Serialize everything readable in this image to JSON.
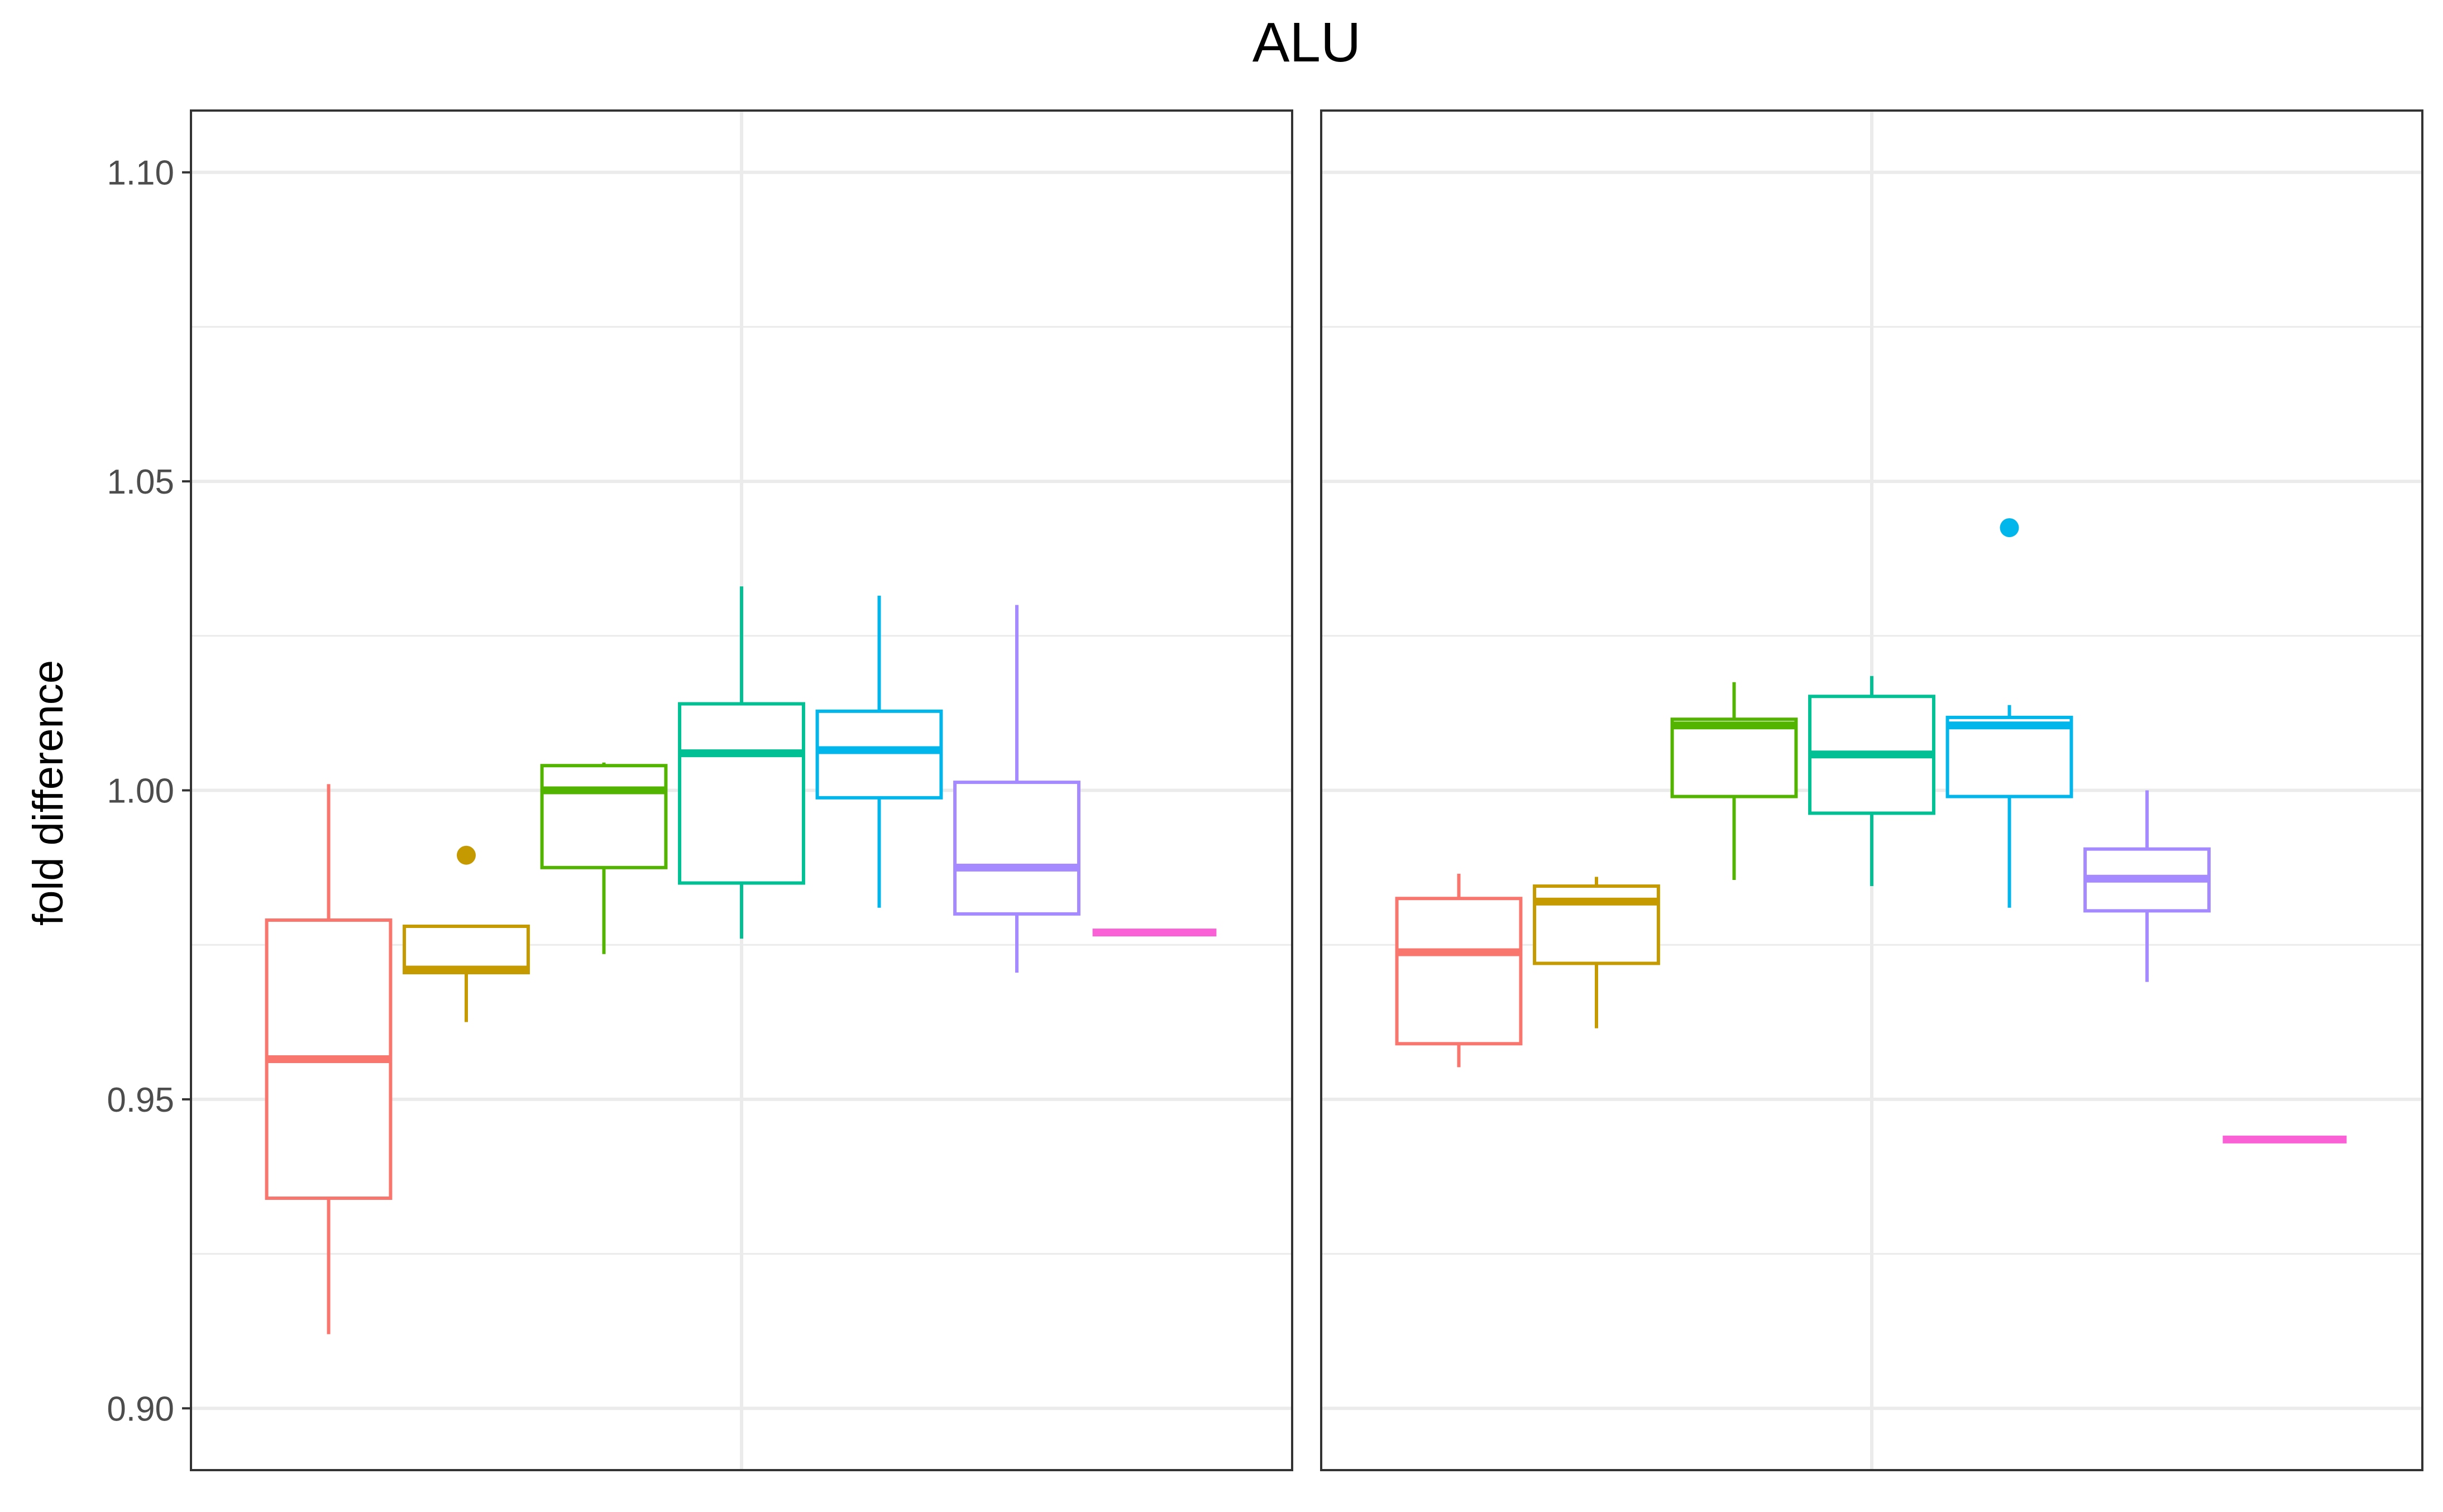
{
  "chart_data": {
    "type": "box",
    "title": "ALU",
    "ylabel": "fold difference",
    "xlabel": "",
    "ylim": [
      0.89,
      1.11
    ],
    "yticks": [
      0.9,
      0.95,
      1.0,
      1.05,
      1.1
    ],
    "ytick_labels": [
      "0.90",
      "0.95",
      "1.00",
      "1.05",
      "1.10"
    ],
    "grid": true,
    "legend": "none",
    "series_colors": [
      "#F8766D",
      "#C49A00",
      "#53B400",
      "#00C094",
      "#00B6EB",
      "#A58AFF",
      "#FB61D7"
    ],
    "panels": [
      {
        "boxes": [
          {
            "q1": 0.934,
            "median": 0.9565,
            "q3": 0.979,
            "whisker_low": 0.912,
            "whisker_high": 1.001,
            "outliers": []
          },
          {
            "q1": 0.9705,
            "median": 0.971,
            "q3": 0.978,
            "whisker_low": 0.9625,
            "whisker_high": 0.978,
            "outliers": [
              0.9895
            ]
          },
          {
            "q1": 0.9875,
            "median": 1.0,
            "q3": 1.004,
            "whisker_low": 0.9735,
            "whisker_high": 1.0045,
            "outliers": []
          },
          {
            "q1": 0.985,
            "median": 1.006,
            "q3": 1.014,
            "whisker_low": 0.976,
            "whisker_high": 1.033,
            "outliers": []
          },
          {
            "q1": 0.9988,
            "median": 1.0065,
            "q3": 1.0128,
            "whisker_low": 0.981,
            "whisker_high": 1.0315,
            "outliers": []
          },
          {
            "q1": 0.98,
            "median": 0.9875,
            "q3": 1.0013,
            "whisker_low": 0.9705,
            "whisker_high": 1.03,
            "outliers": []
          },
          {
            "q1": 0.977,
            "median": 0.977,
            "q3": 0.977,
            "whisker_low": 0.977,
            "whisker_high": 0.977,
            "outliers": []
          }
        ]
      },
      {
        "boxes": [
          {
            "q1": 0.959,
            "median": 0.9738,
            "q3": 0.9825,
            "whisker_low": 0.9552,
            "whisker_high": 0.9865,
            "outliers": []
          },
          {
            "q1": 0.972,
            "median": 0.982,
            "q3": 0.9845,
            "whisker_low": 0.9615,
            "whisker_high": 0.986,
            "outliers": []
          },
          {
            "q1": 0.999,
            "median": 1.0105,
            "q3": 1.0115,
            "whisker_low": 0.9855,
            "whisker_high": 1.0175,
            "outliers": []
          },
          {
            "q1": 0.9963,
            "median": 1.0058,
            "q3": 1.0152,
            "whisker_low": 0.9845,
            "whisker_high": 1.0185,
            "outliers": []
          },
          {
            "q1": 0.999,
            "median": 1.0105,
            "q3": 1.0118,
            "whisker_low": 0.981,
            "whisker_high": 1.0138,
            "outliers": [
              1.0425
            ]
          },
          {
            "q1": 0.9805,
            "median": 0.9857,
            "q3": 0.9905,
            "whisker_low": 0.969,
            "whisker_high": 1.0,
            "outliers": []
          },
          {
            "q1": 0.9435,
            "median": 0.9435,
            "q3": 0.9435,
            "whisker_low": 0.9435,
            "whisker_high": 0.9435,
            "outliers": []
          }
        ]
      }
    ]
  }
}
